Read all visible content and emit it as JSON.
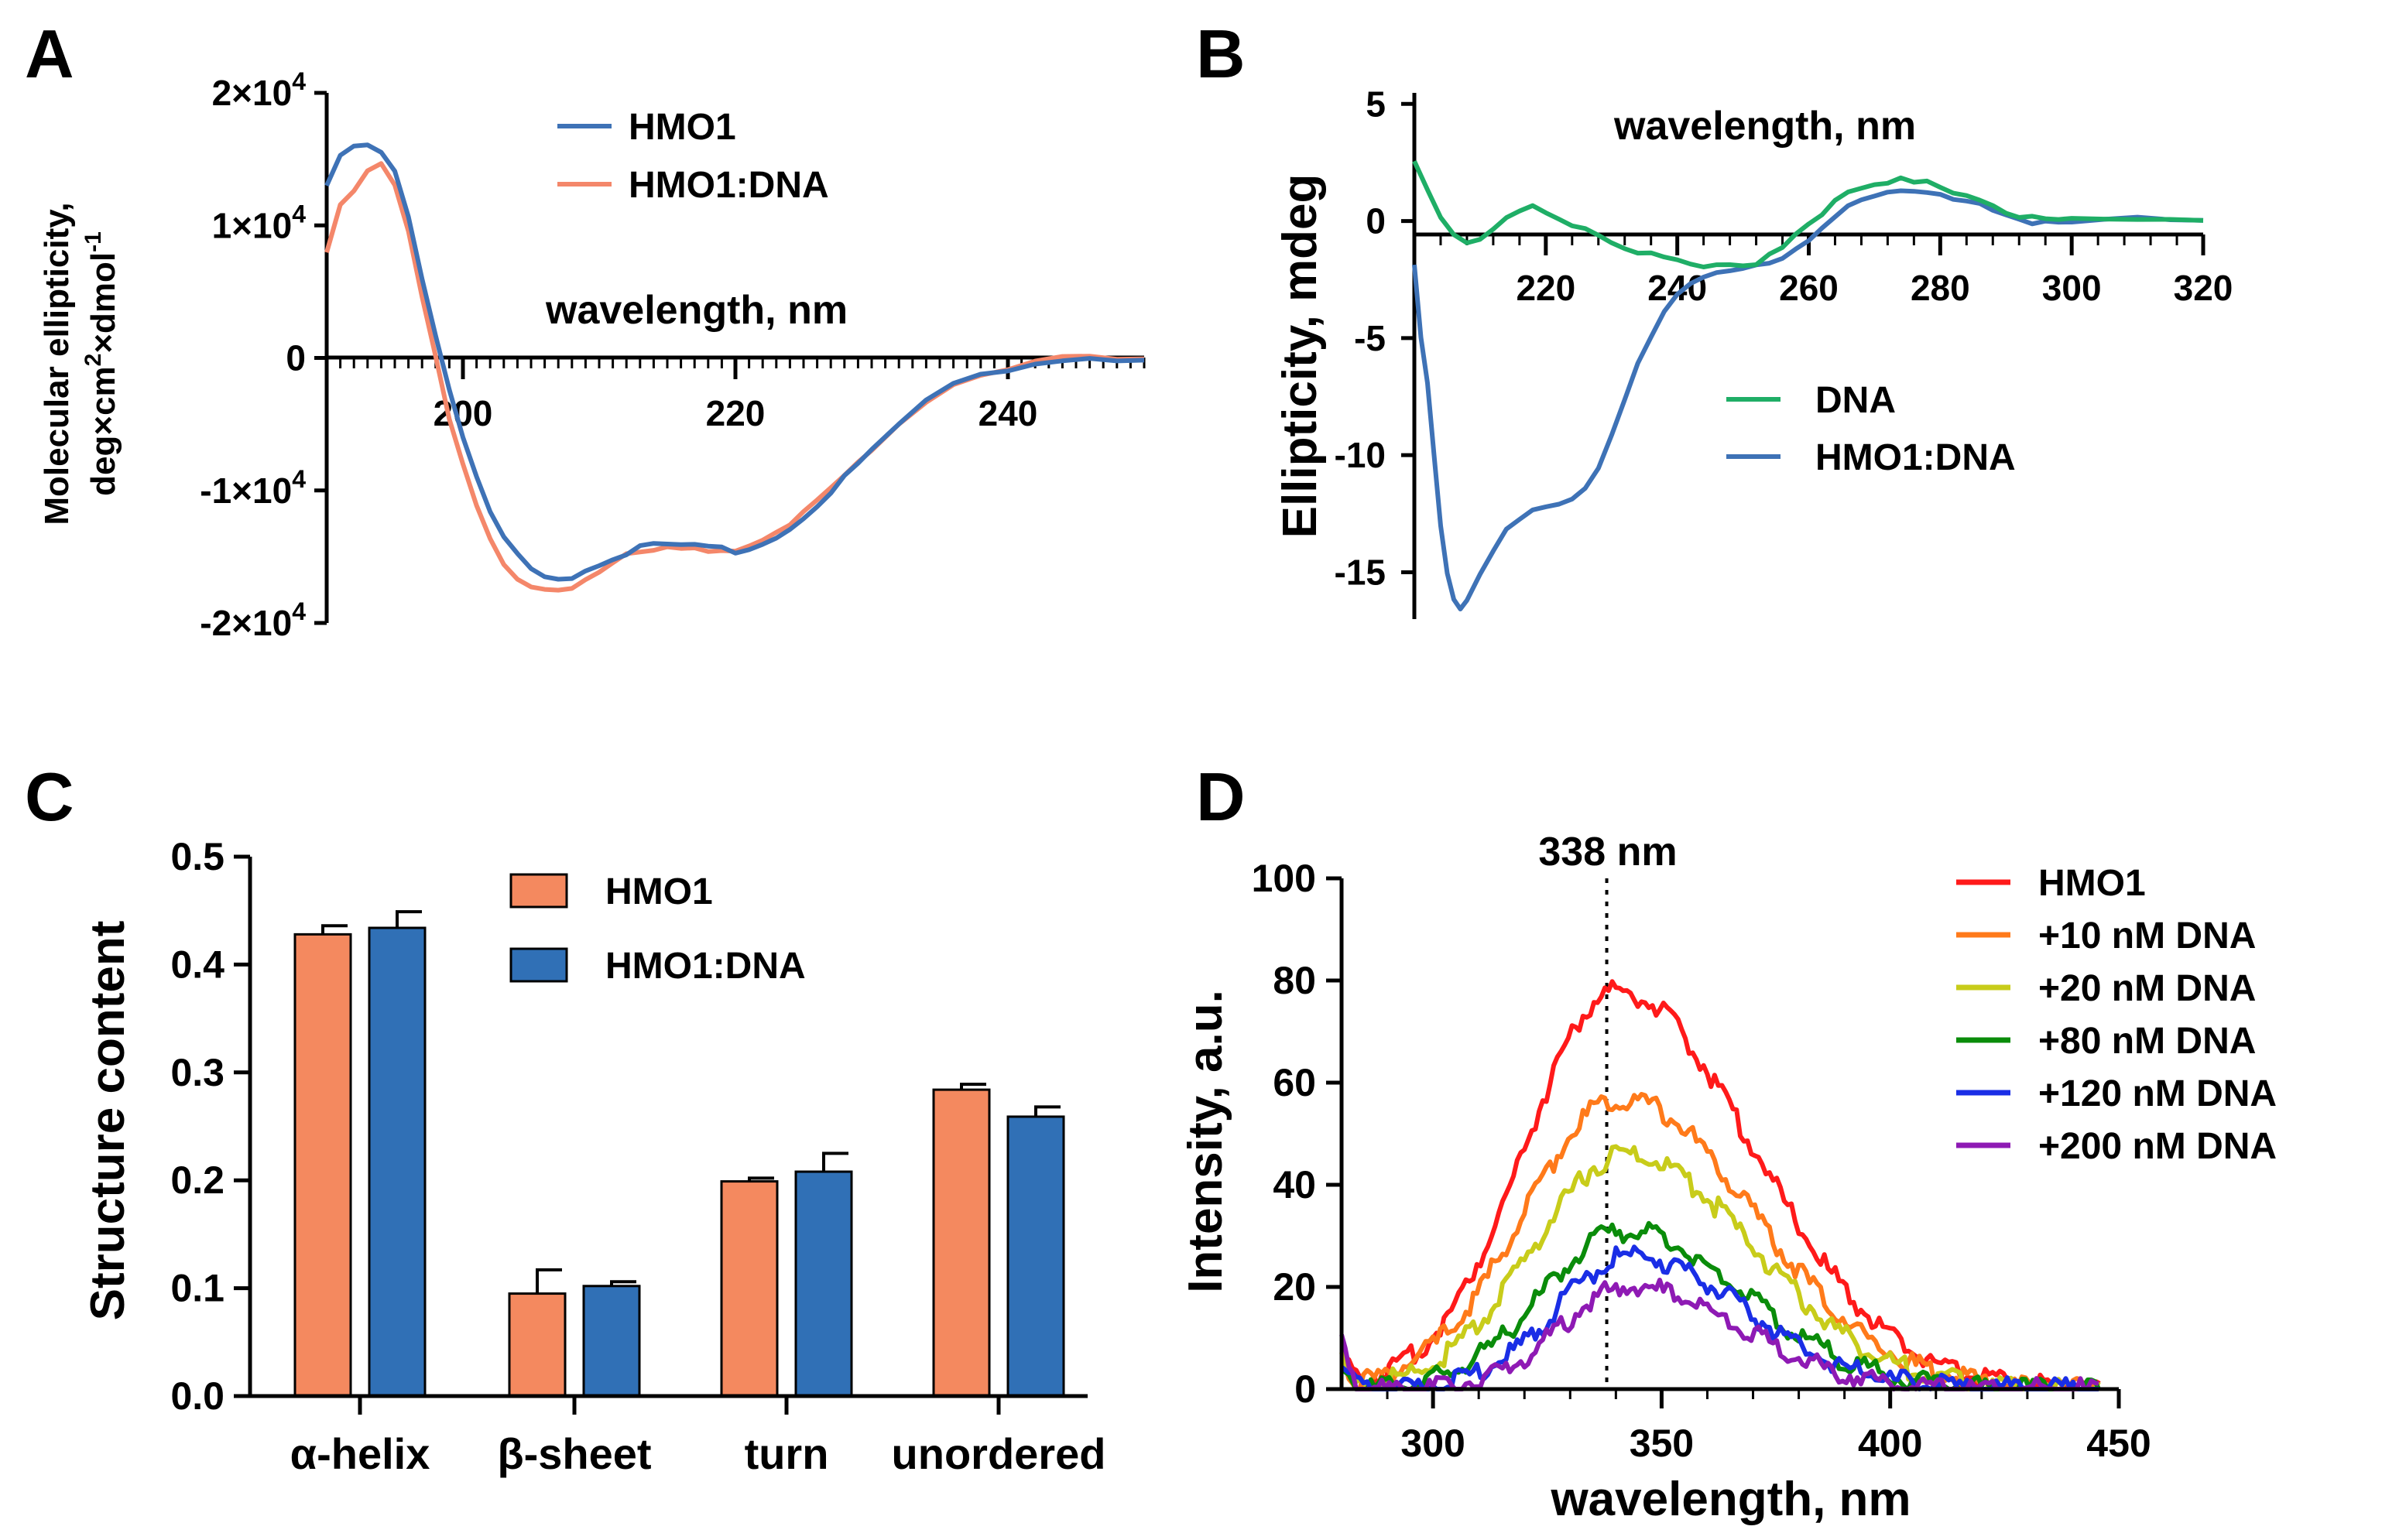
{
  "colors": {
    "hmo1_blue": "#3e72b6",
    "hmo1_salmon": "#f4876a",
    "dna_green": "#1fae66",
    "bar_orange": "#f4895f",
    "bar_blue": "#3070b6",
    "trace_red": "#ff1a1a",
    "trace_orange": "#ff7a1a",
    "trace_yellow": "#c8cc1a",
    "trace_green": "#0a8c0a",
    "trace_blue": "#1a2ee6",
    "trace_purple": "#8e1ab4"
  },
  "chart_data": [
    {
      "panel": "A",
      "type": "line",
      "xlabel": "wavelength, nm",
      "ylabel_line1": "Molecular ellipticity,",
      "ylabel_line2_prefix": "deg×cm",
      "ylabel_line2_mid": "×dmol",
      "ylabel_sup2": "2",
      "ylabel_supm1": "-1",
      "xlim": [
        190,
        250
      ],
      "ylim": [
        -20000,
        20000
      ],
      "xticks": [
        "200",
        "220",
        "240"
      ],
      "ytick_labels": [
        {
          "base": "2×10",
          "exp": "4",
          "value": 20000
        },
        {
          "base": "1×10",
          "exp": "4",
          "value": 10000
        },
        {
          "base": "0",
          "exp": "",
          "value": 0
        },
        {
          "base": "-1×10",
          "exp": "4",
          "value": -10000
        },
        {
          "base": "-2×10",
          "exp": "4",
          "value": -20000
        }
      ],
      "legend": [
        "HMO1",
        "HMO1:DNA"
      ],
      "series": [
        {
          "name": "HMO1",
          "x": [
            190,
            191,
            192,
            193,
            194,
            195,
            196,
            197,
            198,
            199,
            200,
            201,
            202,
            203,
            204,
            205,
            206,
            207,
            208,
            209,
            210,
            211,
            212,
            213,
            214,
            215,
            216,
            217,
            218,
            219,
            220,
            221,
            222,
            223,
            224,
            225,
            226,
            227,
            228,
            229,
            230,
            232,
            234,
            236,
            238,
            240,
            242,
            244,
            246,
            248,
            250
          ],
          "y": [
            13000,
            15500,
            16000,
            16200,
            15600,
            14200,
            10800,
            6000,
            1500,
            -2500,
            -6000,
            -9000,
            -11800,
            -13500,
            -14800,
            -15800,
            -16300,
            -16600,
            -16500,
            -16000,
            -15500,
            -15100,
            -14700,
            -14300,
            -14200,
            -14200,
            -14200,
            -14300,
            -14400,
            -14400,
            -14500,
            -14300,
            -14000,
            -13500,
            -12900,
            -12000,
            -11000,
            -10000,
            -9000,
            -8000,
            -7000,
            -5000,
            -3300,
            -2100,
            -1300,
            -800,
            -400,
            -100,
            0,
            -200,
            -100
          ]
        },
        {
          "name": "HMO1:DNA",
          "x": [
            190,
            191,
            192,
            193,
            194,
            195,
            196,
            197,
            198,
            199,
            200,
            201,
            202,
            203,
            204,
            205,
            206,
            207,
            208,
            209,
            210,
            211,
            212,
            213,
            214,
            215,
            216,
            217,
            218,
            219,
            220,
            221,
            222,
            223,
            224,
            225,
            226,
            227,
            228,
            229,
            230,
            232,
            234,
            236,
            238,
            240,
            242,
            244,
            246,
            248,
            250
          ],
          "y": [
            8000,
            11500,
            12500,
            14000,
            14500,
            13000,
            9500,
            4500,
            0,
            -4500,
            -8000,
            -11000,
            -13500,
            -15500,
            -16500,
            -17200,
            -17600,
            -17700,
            -17400,
            -16800,
            -16200,
            -15500,
            -15000,
            -14500,
            -14300,
            -14200,
            -14200,
            -14300,
            -14400,
            -14500,
            -14500,
            -14300,
            -13900,
            -13300,
            -12700,
            -11800,
            -10800,
            -9800,
            -8800,
            -7800,
            -6800,
            -4800,
            -3200,
            -2000,
            -1200,
            -700,
            -300,
            -100,
            0,
            -100,
            -100
          ]
        }
      ]
    },
    {
      "panel": "B",
      "type": "line",
      "xlabel": "wavelength, nm",
      "ylabel": "Ellipticity, mdeg",
      "xlim": [
        200,
        320
      ],
      "ylim": [
        -17,
        6
      ],
      "xticks": [
        "220",
        "240",
        "260",
        "280",
        "300",
        "320"
      ],
      "yticks": [
        "5",
        "0",
        "-5",
        "-10",
        "-15"
      ],
      "legend": [
        "DNA",
        "HMO1:DNA"
      ],
      "series": [
        {
          "name": "DNA",
          "x": [
            200,
            202,
            204,
            206,
            208,
            210,
            212,
            214,
            216,
            218,
            220,
            222,
            224,
            226,
            228,
            230,
            232,
            234,
            236,
            238,
            240,
            242,
            244,
            246,
            248,
            250,
            252,
            254,
            256,
            258,
            260,
            262,
            264,
            266,
            268,
            270,
            272,
            274,
            276,
            278,
            280,
            282,
            284,
            286,
            288,
            290,
            292,
            294,
            296,
            298,
            300,
            305,
            310,
            315,
            320
          ],
          "y": [
            2.6,
            1.4,
            0.2,
            -0.6,
            -1.0,
            -0.8,
            -0.4,
            0,
            0.4,
            0.5,
            0.4,
            0.2,
            -0.1,
            -0.3,
            -0.6,
            -0.9,
            -1.1,
            -1.3,
            -1.5,
            -1.7,
            -1.8,
            -1.9,
            -2.0,
            -2.0,
            -2.0,
            -1.9,
            -1.7,
            -1.4,
            -1.0,
            -0.5,
            0,
            0.4,
            0.8,
            1.1,
            1.3,
            1.5,
            1.6,
            1.7,
            1.6,
            1.6,
            1.5,
            1.3,
            1.1,
            0.9,
            0.7,
            0.4,
            0.2,
            0.1,
            0,
            0,
            0,
            0,
            0,
            0,
            0
          ]
        },
        {
          "name": "HMO1:DNA",
          "x": [
            200,
            201,
            202,
            203,
            204,
            205,
            206,
            207,
            208,
            210,
            212,
            214,
            216,
            218,
            220,
            222,
            224,
            226,
            228,
            230,
            232,
            234,
            236,
            238,
            240,
            242,
            244,
            246,
            248,
            250,
            252,
            254,
            256,
            258,
            260,
            262,
            264,
            266,
            268,
            270,
            272,
            274,
            276,
            278,
            280,
            282,
            284,
            286,
            288,
            290,
            292,
            294,
            296,
            298,
            300,
            305,
            310,
            315,
            320
          ],
          "y": [
            -2,
            -5,
            -7,
            -10,
            -13,
            -15,
            -16,
            -16.5,
            -16.2,
            -15,
            -14,
            -13.2,
            -12.8,
            -12.5,
            -12.3,
            -12.2,
            -12.0,
            -11.5,
            -10.5,
            -9.0,
            -7.5,
            -6.0,
            -4.8,
            -3.8,
            -3.0,
            -2.6,
            -2.4,
            -2.3,
            -2.2,
            -2.1,
            -2.0,
            -1.9,
            -1.6,
            -1.2,
            -0.7,
            -0.2,
            0.3,
            0.7,
            1.0,
            1.1,
            1.2,
            1.2,
            1.2,
            1.1,
            1.0,
            0.9,
            0.8,
            0.7,
            0.5,
            0.3,
            0.1,
            0,
            0,
            0,
            0,
            0,
            0,
            0,
            0
          ]
        }
      ]
    },
    {
      "panel": "C",
      "type": "bar",
      "ylabel": "Structure content",
      "ylim": [
        0,
        0.5
      ],
      "yticks": [
        "0.0",
        "0.1",
        "0.2",
        "0.3",
        "0.4",
        "0.5"
      ],
      "categories": [
        "α-helix",
        "β-sheet",
        "turn",
        "unordered"
      ],
      "legend": [
        "HMO1",
        "HMO1:DNA"
      ],
      "series": [
        {
          "name": "HMO1",
          "values": [
            0.428,
            0.095,
            0.199,
            0.284
          ],
          "errors": [
            0.008,
            0.022,
            0.003,
            0.005
          ]
        },
        {
          "name": "HMO1:DNA",
          "values": [
            0.434,
            0.102,
            0.208,
            0.259
          ],
          "errors": [
            0.015,
            0.004,
            0.017,
            0.009
          ]
        }
      ]
    },
    {
      "panel": "D",
      "type": "line",
      "xlabel": "wavelength, nm",
      "ylabel": "Intensity, a.u.",
      "xlim": [
        280,
        450
      ],
      "ylim": [
        0,
        100
      ],
      "xticks": [
        "300",
        "350",
        "400",
        "450"
      ],
      "yticks": [
        "0",
        "20",
        "40",
        "60",
        "80",
        "100"
      ],
      "annotation": "338 nm",
      "annotation_x": 338,
      "legend": [
        "HMO1",
        "+10 nM DNA",
        "+20 nM DNA",
        "+80 nM DNA",
        "+120 nM DNA",
        "+200 nM DNA"
      ],
      "series": [
        {
          "name": "HMO1",
          "peak": 78,
          "center": 340,
          "sigma_left": 20,
          "sigma_right": 30
        },
        {
          "name": "+10 nM DNA",
          "peak": 57,
          "center": 341,
          "sigma_left": 21,
          "sigma_right": 29
        },
        {
          "name": "+20 nM DNA",
          "peak": 46,
          "center": 342,
          "sigma_left": 20,
          "sigma_right": 28
        },
        {
          "name": "+80 nM DNA",
          "peak": 31,
          "center": 342,
          "sigma_left": 18,
          "sigma_right": 26
        },
        {
          "name": "+120 nM DNA",
          "peak": 26,
          "center": 343,
          "sigma_left": 16,
          "sigma_right": 25
        },
        {
          "name": "+200 nM DNA",
          "peak": 20,
          "center": 343,
          "sigma_left": 15,
          "sigma_right": 24
        }
      ]
    }
  ]
}
